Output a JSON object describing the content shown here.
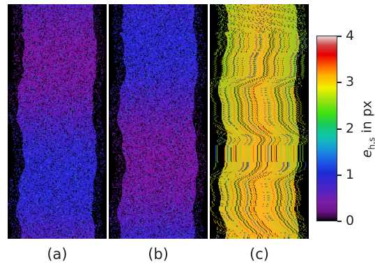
{
  "panels": [
    {
      "id": "a",
      "caption": "(a)",
      "palette": "low"
    },
    {
      "id": "b",
      "caption": "(b)",
      "palette": "low"
    },
    {
      "id": "c",
      "caption": "(c)",
      "palette": "high"
    }
  ],
  "colorbar": {
    "ticks": [
      "0",
      "1",
      "2",
      "3",
      "4"
    ],
    "min": 0,
    "max": 4,
    "label_symbol": "e",
    "label_sub": "h,s",
    "label_unit": " in px"
  },
  "colors": {
    "background": "#000000",
    "low_purple": "#7a1a9a",
    "low_blue": "#2a2ad8",
    "high_green": "#40d020",
    "high_yellow": "#e8e000"
  }
}
